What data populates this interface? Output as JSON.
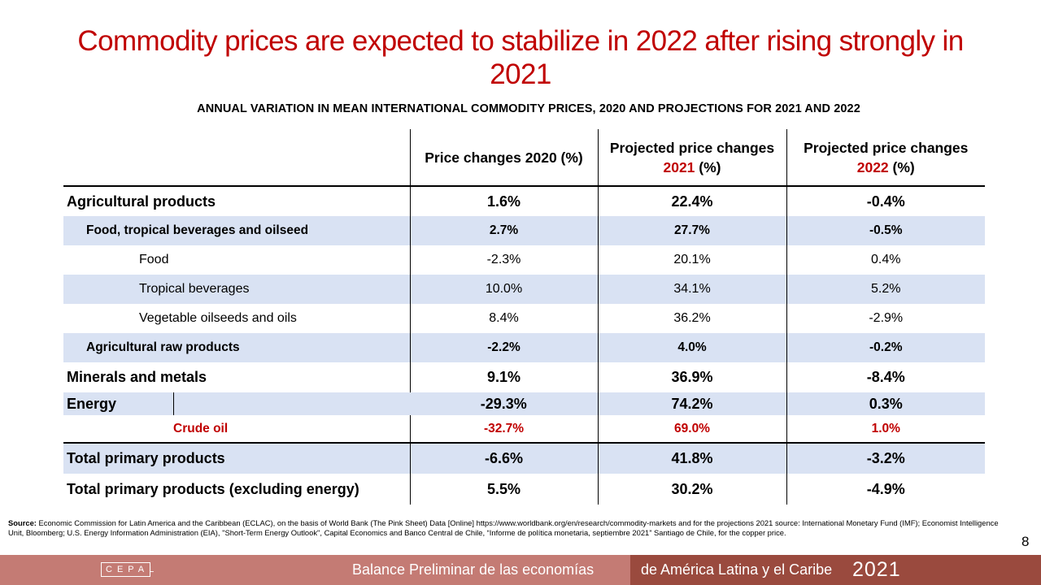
{
  "title": "Commodity prices are expected to stabilize in 2022 after rising strongly in 2021",
  "subtitle": "ANNUAL VARIATION IN MEAN INTERNATIONAL COMMODITY PRICES, 2020 AND PROJECTIONS FOR 2021 AND 2022",
  "table": {
    "headers": {
      "col1": "Price changes 2020 (%)",
      "col2_line1": "Projected price changes",
      "col2_year": "2021",
      "col2_suffix": " (%)",
      "col3_line1": "Projected price changes",
      "col3_year": "2022",
      "col3_suffix": " (%)"
    },
    "rows": [
      {
        "label": "Agricultural products",
        "v2020": "1.6%",
        "v2021": "22.4%",
        "v2022": "-0.4%"
      },
      {
        "label": "Food, tropical beverages and oilseed",
        "v2020": "2.7%",
        "v2021": "27.7%",
        "v2022": "-0.5%"
      },
      {
        "label": "Food",
        "v2020": "-2.3%",
        "v2021": "20.1%",
        "v2022": "0.4%"
      },
      {
        "label": "Tropical beverages",
        "v2020": "10.0%",
        "v2021": "34.1%",
        "v2022": "5.2%"
      },
      {
        "label": "Vegetable oilseeds and oils",
        "v2020": "8.4%",
        "v2021": "36.2%",
        "v2022": "-2.9%"
      },
      {
        "label": "Agricultural raw products",
        "v2020": "-2.2%",
        "v2021": "4.0%",
        "v2022": "-0.2%"
      },
      {
        "label": "Minerals and metals",
        "v2020": "9.1%",
        "v2021": "36.9%",
        "v2022": "-8.4%"
      },
      {
        "label": "Energy",
        "v2020": "-29.3%",
        "v2021": "74.2%",
        "v2022": "0.3%"
      },
      {
        "label": "Crude oil",
        "v2020": "-32.7%",
        "v2021": "69.0%",
        "v2022": "1.0%"
      },
      {
        "label": "Total primary products",
        "v2020": "-6.6%",
        "v2021": "41.8%",
        "v2022": "-3.2%"
      },
      {
        "label": "Total primary products (excluding energy)",
        "v2020": "5.5%",
        "v2021": "30.2%",
        "v2022": "-4.9%"
      }
    ]
  },
  "source": {
    "label": "Source:",
    "text": " Economic Commission for Latin America and the Caribbean (ECLAC), on the basis of World Bank (The Pink Sheet) Data [Online] https://www.worldbank.org/en/research/commodity-markets and for the projections 2021 source: International Monetary Fund (IMF); Economist Intelligence Unit, Bloomberg; U.S. Energy Information Administration (EIA), \"Short-Term Energy Outlook\", Capital Economics and Banco Central de Chile, “Informe de política monetaria, septiembre 2021” Santiago de Chile, for the copper price."
  },
  "page_number": "8",
  "footer": {
    "logo": "CEPAL",
    "text_left": "Balance Preliminar de las economías",
    "text_right": "de América Latina y el Caribe",
    "year": "2021"
  }
}
